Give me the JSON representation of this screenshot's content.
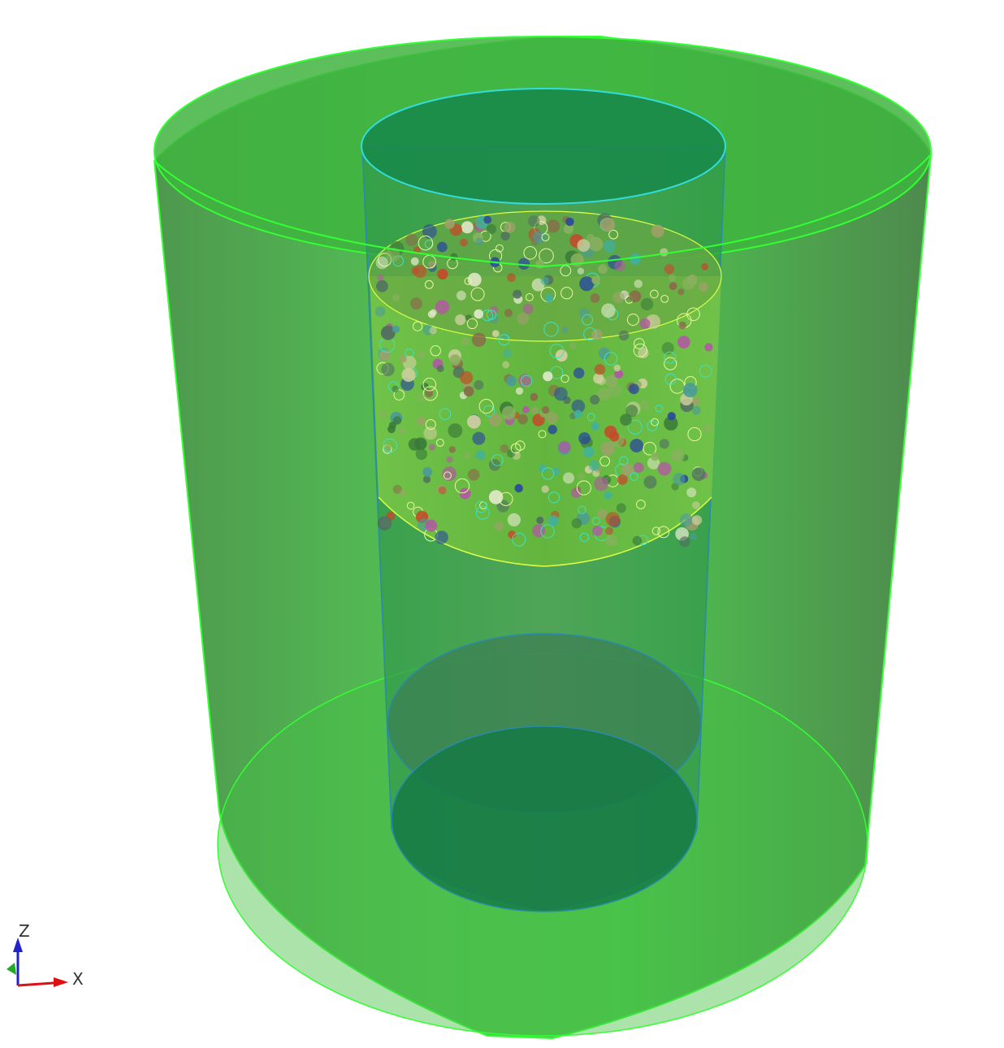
{
  "viewport": {
    "background": "#ffffff"
  },
  "scene": {
    "outer_cylinder": {
      "color": "#3cc83c",
      "edge_color": "#33ff33"
    },
    "inner_cylinder": {
      "color": "#1f8f55",
      "edge_top_color": "#33dddd",
      "edge_bottom_color": "#2a8aaa"
    },
    "particle_bed": {
      "color": "#6fc83a",
      "edge_color": "#ddff44"
    },
    "particle_colors": [
      "#c44a2a",
      "#8a6a4a",
      "#d0d0a0",
      "#4a9a9a",
      "#2a4a9a",
      "#b05aa0",
      "#8ab060",
      "#e0e8c8",
      "#40b0a0",
      "#507060",
      "#a0a06a",
      "#3a7a3a"
    ]
  },
  "triad": {
    "z_label": "Z",
    "x_label": "X",
    "z_color": "#2222cc",
    "x_color": "#dd1111",
    "y_color": "#22aa22"
  }
}
